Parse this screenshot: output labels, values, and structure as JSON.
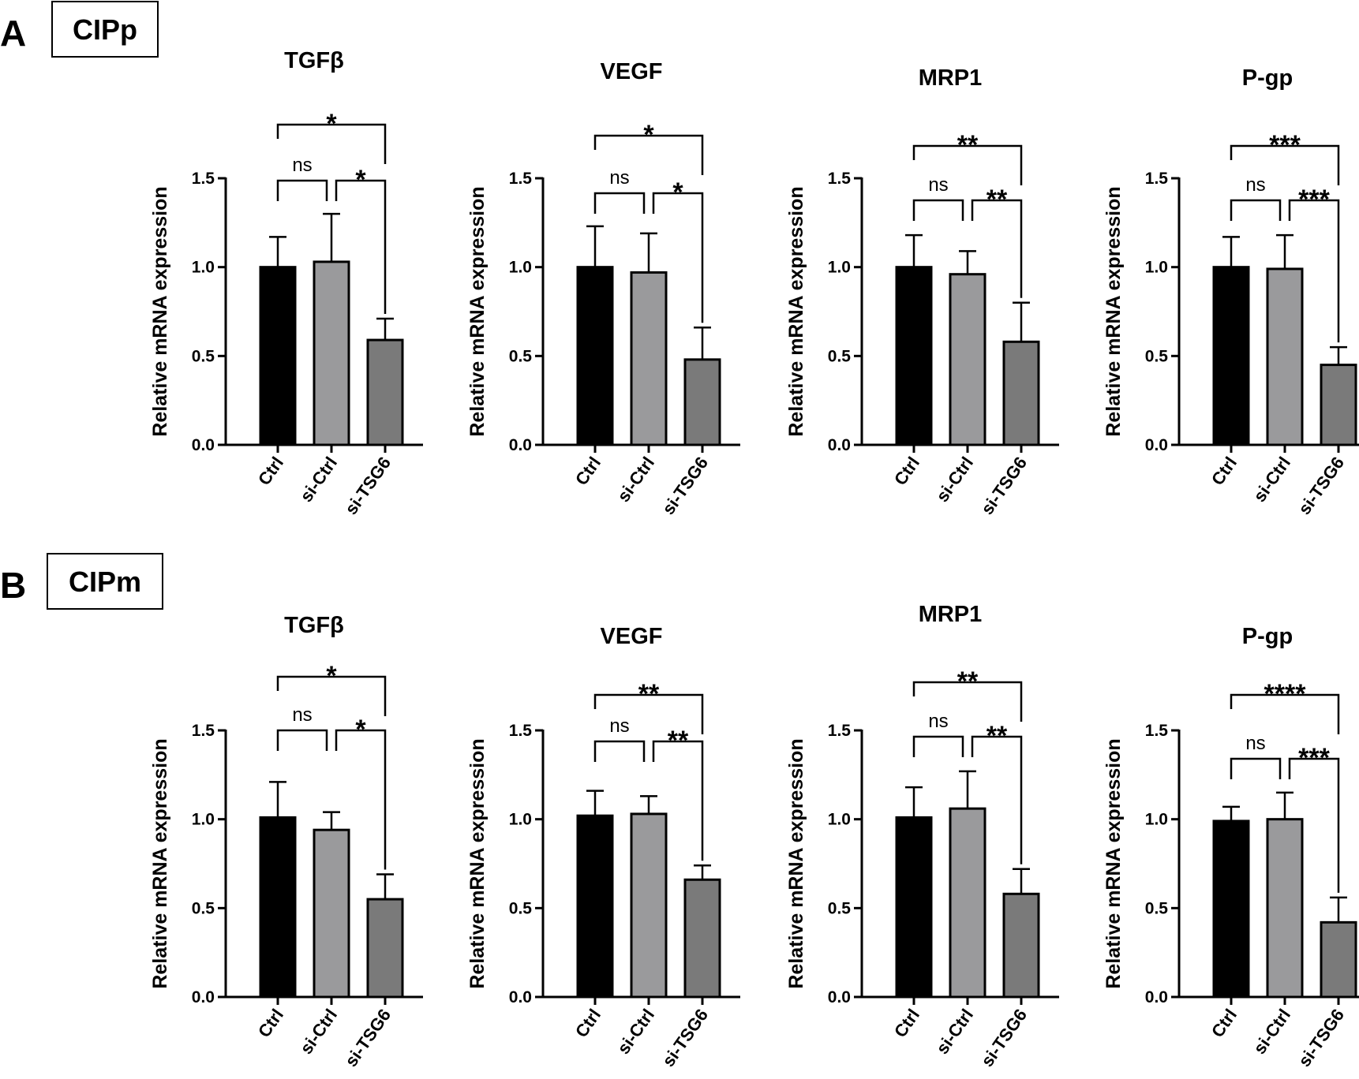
{
  "sections": [
    {
      "letter": "A",
      "label": "CIPp"
    },
    {
      "letter": "B",
      "label": "CIPm"
    }
  ],
  "colors": {
    "Ctrl": "#000000",
    "si-Ctrl": "#9a9a9c",
    "si-TSG6": "#7a7a7a"
  },
  "chart_data": [
    {
      "type": "bar",
      "section": "A",
      "title": "TGFβ",
      "ylabel": "Relative mRNA expression",
      "categories": [
        "Ctrl",
        "si-Ctrl",
        "si-TSG6"
      ],
      "values": [
        1.0,
        1.03,
        0.59
      ],
      "errors": [
        0.17,
        0.27,
        0.12
      ],
      "ylim": [
        0,
        1.5
      ],
      "yticks": [
        "0.0",
        "0.5",
        "1.0",
        "1.5"
      ],
      "significance": [
        {
          "from": 0,
          "to": 2,
          "label": "*"
        },
        {
          "from": 0,
          "to": 1,
          "label": "ns"
        },
        {
          "from": 1,
          "to": 2,
          "label": "*"
        }
      ]
    },
    {
      "type": "bar",
      "section": "A",
      "title": "VEGF",
      "ylabel": "Relative mRNA expression",
      "categories": [
        "Ctrl",
        "si-Ctrl",
        "si-TSG6"
      ],
      "values": [
        1.0,
        0.97,
        0.48
      ],
      "errors": [
        0.23,
        0.22,
        0.18
      ],
      "ylim": [
        0,
        1.5
      ],
      "yticks": [
        "0.0",
        "0.5",
        "1.0",
        "1.5"
      ],
      "significance": [
        {
          "from": 0,
          "to": 2,
          "label": "*"
        },
        {
          "from": 0,
          "to": 1,
          "label": "ns"
        },
        {
          "from": 1,
          "to": 2,
          "label": "*"
        }
      ]
    },
    {
      "type": "bar",
      "section": "A",
      "title": "MRP1",
      "ylabel": "Relative mRNA expression",
      "categories": [
        "Ctrl",
        "si-Ctrl",
        "si-TSG6"
      ],
      "values": [
        1.0,
        0.96,
        0.58
      ],
      "errors": [
        0.18,
        0.13,
        0.22
      ],
      "ylim": [
        0,
        1.5
      ],
      "yticks": [
        "0.0",
        "0.5",
        "1.0",
        "1.5"
      ],
      "significance": [
        {
          "from": 0,
          "to": 2,
          "label": "**"
        },
        {
          "from": 0,
          "to": 1,
          "label": "ns"
        },
        {
          "from": 1,
          "to": 2,
          "label": "**"
        }
      ]
    },
    {
      "type": "bar",
      "section": "A",
      "title": "P-gp",
      "ylabel": "Relative mRNA expression",
      "categories": [
        "Ctrl",
        "si-Ctrl",
        "si-TSG6"
      ],
      "values": [
        1.0,
        0.99,
        0.45
      ],
      "errors": [
        0.17,
        0.19,
        0.1
      ],
      "ylim": [
        0,
        1.5
      ],
      "yticks": [
        "0.0",
        "0.5",
        "1.0",
        "1.5"
      ],
      "significance": [
        {
          "from": 0,
          "to": 2,
          "label": "***"
        },
        {
          "from": 0,
          "to": 1,
          "label": "ns"
        },
        {
          "from": 1,
          "to": 2,
          "label": "***"
        }
      ]
    },
    {
      "type": "bar",
      "section": "B",
      "title": "TGFβ",
      "ylabel": "Relative mRNA expression",
      "categories": [
        "Ctrl",
        "si-Ctrl",
        "si-TSG6"
      ],
      "values": [
        1.01,
        0.94,
        0.55
      ],
      "errors": [
        0.2,
        0.1,
        0.14
      ],
      "ylim": [
        0,
        1.5
      ],
      "yticks": [
        "0.0",
        "0.5",
        "1.0",
        "1.5"
      ],
      "significance": [
        {
          "from": 0,
          "to": 2,
          "label": "*"
        },
        {
          "from": 0,
          "to": 1,
          "label": "ns"
        },
        {
          "from": 1,
          "to": 2,
          "label": "*"
        }
      ]
    },
    {
      "type": "bar",
      "section": "B",
      "title": "VEGF",
      "ylabel": "Relative mRNA expression",
      "categories": [
        "Ctrl",
        "si-Ctrl",
        "si-TSG6"
      ],
      "values": [
        1.02,
        1.03,
        0.66
      ],
      "errors": [
        0.14,
        0.1,
        0.08
      ],
      "ylim": [
        0,
        1.5
      ],
      "yticks": [
        "0.0",
        "0.5",
        "1.0",
        "1.5"
      ],
      "significance": [
        {
          "from": 0,
          "to": 2,
          "label": "**"
        },
        {
          "from": 0,
          "to": 1,
          "label": "ns"
        },
        {
          "from": 1,
          "to": 2,
          "label": "**"
        }
      ]
    },
    {
      "type": "bar",
      "section": "B",
      "title": "MRP1",
      "ylabel": "Relative mRNA expression",
      "categories": [
        "Ctrl",
        "si-Ctrl",
        "si-TSG6"
      ],
      "values": [
        1.01,
        1.06,
        0.58
      ],
      "errors": [
        0.17,
        0.21,
        0.14
      ],
      "ylim": [
        0,
        1.5
      ],
      "yticks": [
        "0.0",
        "0.5",
        "1.0",
        "1.5"
      ],
      "significance": [
        {
          "from": 0,
          "to": 2,
          "label": "**"
        },
        {
          "from": 0,
          "to": 1,
          "label": "ns"
        },
        {
          "from": 1,
          "to": 2,
          "label": "**"
        }
      ]
    },
    {
      "type": "bar",
      "section": "B",
      "title": "P-gp",
      "ylabel": "Relative mRNA expression",
      "categories": [
        "Ctrl",
        "si-Ctrl",
        "si-TSG6"
      ],
      "values": [
        0.99,
        1.0,
        0.42
      ],
      "errors": [
        0.08,
        0.15,
        0.14
      ],
      "ylim": [
        0,
        1.5
      ],
      "yticks": [
        "0.0",
        "0.5",
        "1.0",
        "1.5"
      ],
      "significance": [
        {
          "from": 0,
          "to": 2,
          "label": "****"
        },
        {
          "from": 0,
          "to": 1,
          "label": "ns"
        },
        {
          "from": 1,
          "to": 2,
          "label": "***"
        }
      ]
    }
  ]
}
